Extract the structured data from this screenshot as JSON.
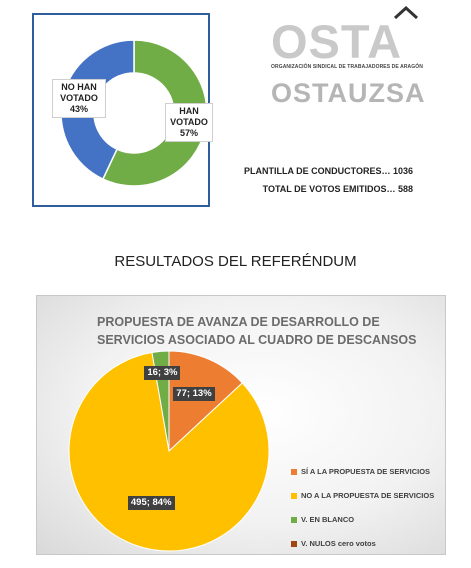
{
  "participation_chart": {
    "type": "pie",
    "subtype": "donut",
    "categories": [
      "NO HAN VOTADO",
      "HAN VOTADO"
    ],
    "values": [
      43,
      57
    ],
    "unit": "%",
    "colors": [
      "#4472c4",
      "#70ad47"
    ],
    "labels": [
      {
        "line1": "NO HAN",
        "line2": "VOTADO",
        "line3": "43%"
      },
      {
        "line1": "HAN",
        "line2": "VOTADO",
        "line3": "57%"
      }
    ]
  },
  "logos": {
    "osta": "OSTA",
    "osta_subtitle": "ORGANIZACIÓN SINDICAL DE TRABAJADORES DE ARAGÓN",
    "ostauzsa": "OSTAUZSA"
  },
  "stats": {
    "drivers": "PLANTILLA DE CONDUCTORES… 1036",
    "votes": "TOTAL DE VOTOS EMITIDOS… 588"
  },
  "heading": "RESULTADOS DEL REFERÉNDUM",
  "chart_data": {
    "type": "pie",
    "title": "PROPUESTA DE AVANZA DE DESARROLLO DE SERVICIOS ASOCIADO AL CUADRO DE DESCANSOS",
    "categories": [
      "SÍ A LA PROPUESTA DE SERVICIOS",
      "NO A LA PROPUESTA DE SERVICIOS",
      "V.  EN BLANCO",
      "V.  NULOS cero votos"
    ],
    "values": [
      77,
      495,
      16,
      0
    ],
    "percents": [
      13,
      84,
      3,
      0
    ],
    "data_labels": [
      "77; 13%",
      "495; 84%",
      "16; 3%",
      ""
    ],
    "colors": [
      "#ed7d31",
      "#ffc000",
      "#70ad47",
      "#9e480e"
    ],
    "legend_position": "right"
  }
}
